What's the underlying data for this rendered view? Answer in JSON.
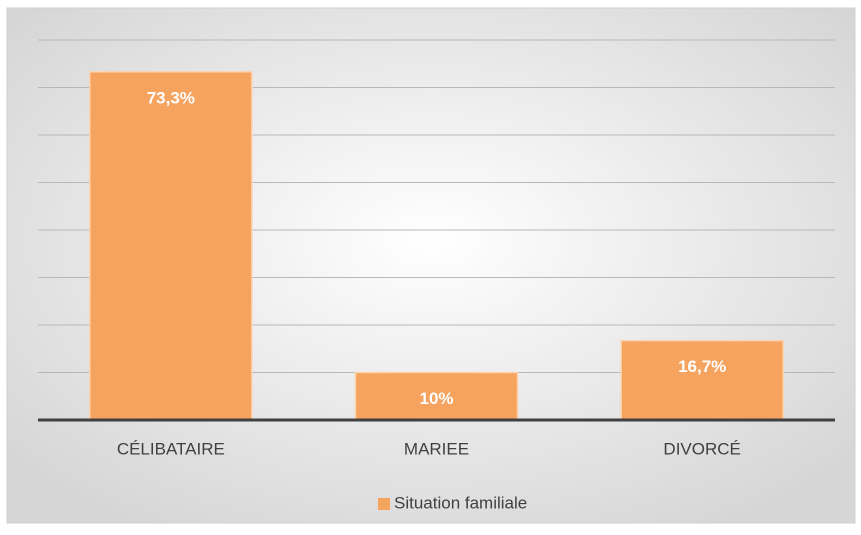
{
  "chart_data": {
    "type": "bar",
    "categories": [
      "CÉLIBATAIRE",
      "MARIEE",
      "DIVORCÉ"
    ],
    "series": [
      {
        "name": "Situation familiale",
        "color": "#f5a35f",
        "values": [
          73.3,
          10,
          16.7
        ],
        "value_labels": [
          "73,3%",
          "10%",
          "16,7%"
        ]
      }
    ],
    "ylim": [
      0,
      80
    ],
    "yticks": [
      0,
      10,
      20,
      30,
      40,
      50,
      60,
      70,
      80
    ],
    "grid": true,
    "legend": "bottom"
  }
}
